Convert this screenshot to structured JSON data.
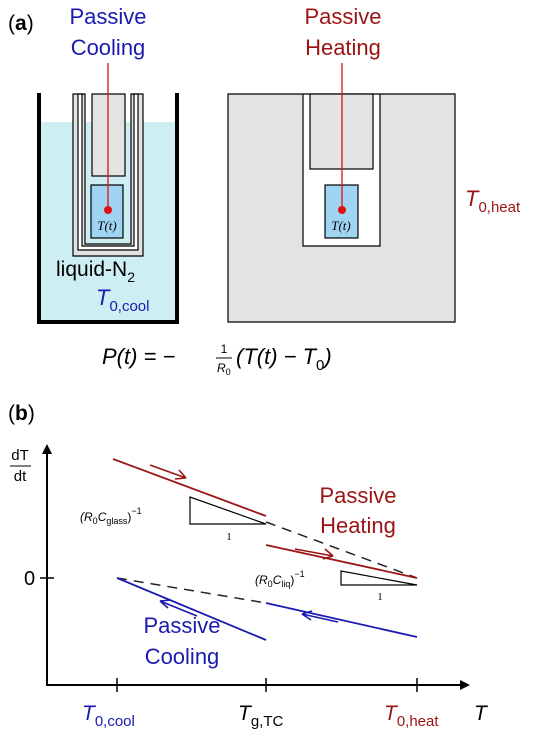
{
  "panel_a": {
    "label_open": "(",
    "label_letter": "a",
    "label_close": ")",
    "cooling_title_line1": "Passive",
    "cooling_title_line2": "Cooling",
    "heating_title_line1": "Passive",
    "heating_title_line2": "Heating",
    "sample_temp": "T(t)",
    "liquid_label": "liquid-N",
    "liquid_sub": "2",
    "t0_cool_main": "T",
    "t0_cool_sub": "0,cool",
    "t0_heat_main": "T",
    "t0_heat_sub": "0,heat"
  },
  "equation": {
    "lhs": "P(t) = −",
    "frac_num": "1",
    "frac_den_main": "R",
    "frac_den_sub": "0",
    "rhs_open": "(T(t) − T",
    "rhs_sub": "0",
    "rhs_close": ")"
  },
  "panel_b": {
    "label_open": "(",
    "label_letter": "b",
    "label_close": ")",
    "ylabel_num": "dT",
    "ylabel_den": "dt",
    "ytick_zero": "0",
    "heating_line1": "Passive",
    "heating_line2": "Heating",
    "cooling_line1": "Passive",
    "cooling_line2": "Cooling",
    "slope_glass_main": "(R",
    "slope_glass_sub1": "0",
    "slope_glass_C": "C",
    "slope_glass_sub2": "glass",
    "slope_glass_close": ")",
    "slope_glass_exp": "−1",
    "slope_glass_run": "1",
    "slope_liq_main": "(R",
    "slope_liq_sub1": "0",
    "slope_liq_C": "C",
    "slope_liq_sub2": "liq",
    "slope_liq_close": ")",
    "slope_liq_exp": "−1",
    "slope_liq_run": "1",
    "xtick_cool_main": "T",
    "xtick_cool_sub": "0,cool",
    "xtick_g_main": "T",
    "xtick_g_sub": "g,TC",
    "xtick_heat_main": "T",
    "xtick_heat_sub": "0,heat",
    "xlabel": "T"
  },
  "colors": {
    "cooling": "#1a1ab0",
    "heating": "#9b1414",
    "dashed": "#222222",
    "liquid": "#cdeef3",
    "sample": "#9fd4f2",
    "gray_block": "#e3e3e3",
    "probe": "#e01010"
  }
}
